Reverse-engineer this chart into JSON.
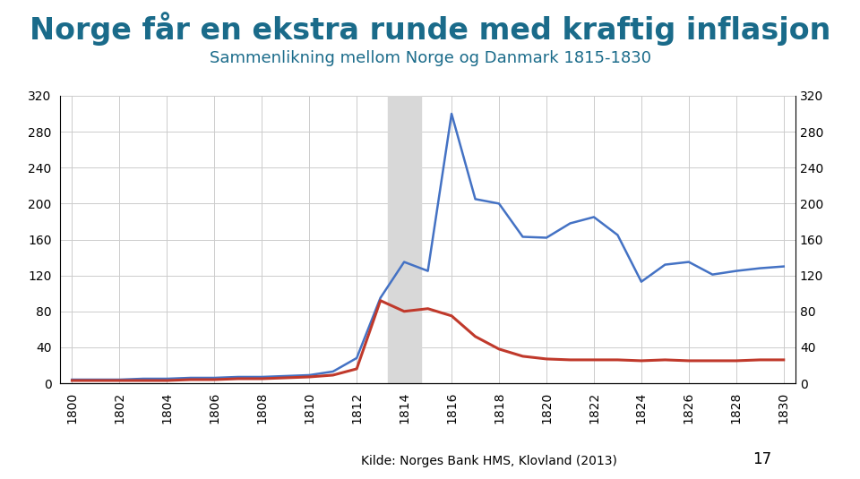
{
  "title": "Norge får en ekstra runde med kraftig inflasjon",
  "subtitle": "Sammenlikning mellom Norge og Danmark 1815-1830",
  "title_color": "#1a6b8a",
  "subtitle_color": "#1a6b8a",
  "source_text": "Kilde: Norges Bank HMS, Klovland (2013)",
  "page_number": "17",
  "background_color": "#ffffff",
  "grid_color": "#cccccc",
  "shading_x_start": 1813.3,
  "shading_x_end": 1814.7,
  "shading_color": "#d8d8d8",
  "ylim": [
    0,
    320
  ],
  "yticks": [
    0,
    40,
    80,
    120,
    160,
    200,
    240,
    280,
    320
  ],
  "xlim": [
    1799.5,
    1830.5
  ],
  "xticks": [
    1800,
    1802,
    1804,
    1806,
    1808,
    1810,
    1812,
    1814,
    1816,
    1818,
    1820,
    1822,
    1824,
    1826,
    1828,
    1830
  ],
  "norge_color": "#4472c4",
  "danmark_color": "#c0392b",
  "norge_linewidth": 1.8,
  "danmark_linewidth": 2.2,
  "norge_data": {
    "years": [
      1800,
      1801,
      1802,
      1803,
      1804,
      1805,
      1806,
      1807,
      1808,
      1809,
      1810,
      1811,
      1812,
      1813,
      1814,
      1815,
      1816,
      1817,
      1818,
      1819,
      1820,
      1821,
      1822,
      1823,
      1824,
      1825,
      1826,
      1827,
      1828,
      1829,
      1830
    ],
    "values": [
      4,
      4,
      4,
      5,
      5,
      6,
      6,
      7,
      7,
      8,
      9,
      13,
      28,
      95,
      135,
      125,
      300,
      205,
      200,
      163,
      162,
      178,
      185,
      165,
      113,
      132,
      135,
      121,
      125,
      128,
      130
    ]
  },
  "danmark_data": {
    "years": [
      1800,
      1801,
      1802,
      1803,
      1804,
      1805,
      1806,
      1807,
      1808,
      1809,
      1810,
      1811,
      1812,
      1813,
      1814,
      1815,
      1816,
      1817,
      1818,
      1819,
      1820,
      1821,
      1822,
      1823,
      1824,
      1825,
      1826,
      1827,
      1828,
      1829,
      1830
    ],
    "values": [
      3,
      3,
      3,
      3,
      3,
      4,
      4,
      5,
      5,
      6,
      7,
      9,
      16,
      92,
      80,
      83,
      75,
      52,
      38,
      30,
      27,
      26,
      26,
      26,
      25,
      26,
      25,
      25,
      25,
      26,
      26
    ]
  },
  "title_fontsize": 24,
  "subtitle_fontsize": 13,
  "tick_fontsize": 10,
  "legend_fontsize": 11,
  "source_fontsize": 10,
  "page_fontsize": 12
}
